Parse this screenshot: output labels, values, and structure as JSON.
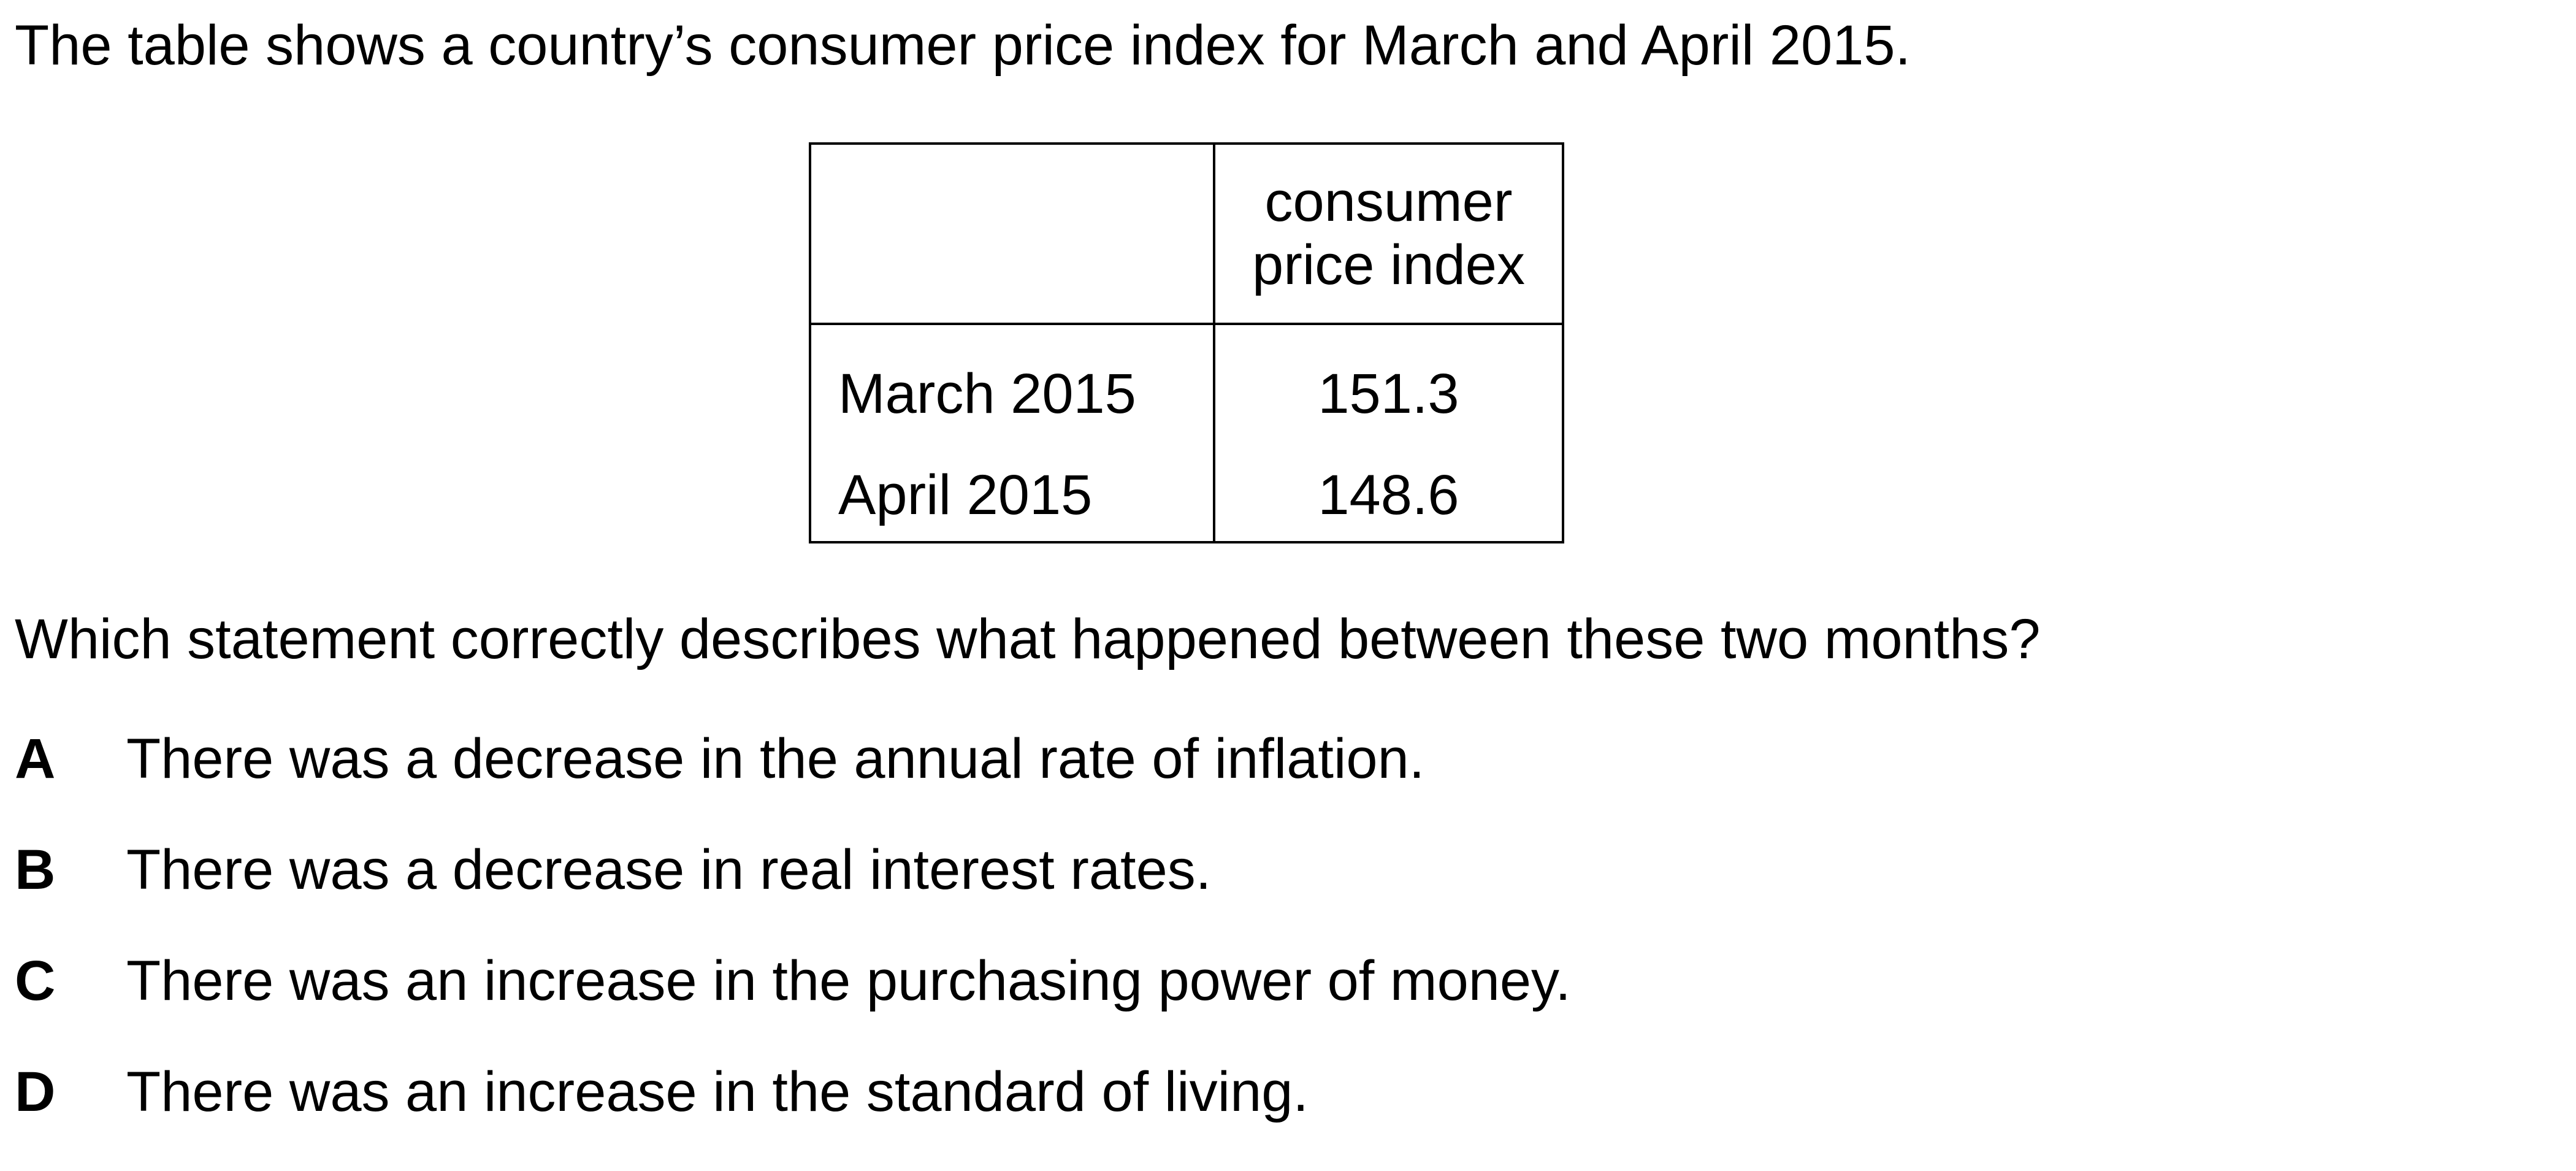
{
  "intro": "The table shows a country’s consumer price index for March and April 2015.",
  "table": {
    "corner": "",
    "header": [
      "consumer",
      "price index"
    ],
    "rows": [
      {
        "period": "March 2015",
        "value": "151.3"
      },
      {
        "period": "April 2015",
        "value": "148.6"
      }
    ]
  },
  "question": "Which statement correctly describes what happened between these two months?",
  "options": [
    {
      "letter": "A",
      "text": "There was a decrease in the annual rate of inflation."
    },
    {
      "letter": "B",
      "text": "There was a decrease in real interest rates."
    },
    {
      "letter": "C",
      "text": "There was an increase in the purchasing power of money."
    },
    {
      "letter": "D",
      "text": "There was an increase in the standard of living."
    }
  ]
}
